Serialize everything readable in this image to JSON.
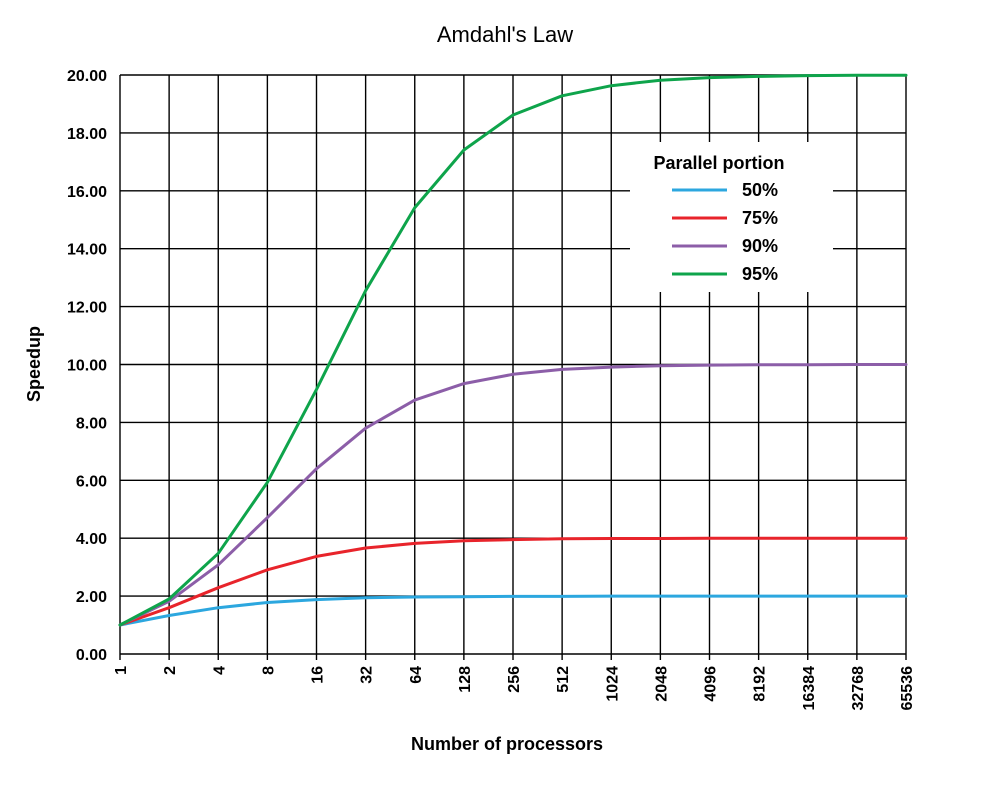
{
  "chart_data": {
    "type": "line",
    "title": "Amdahl's Law",
    "xlabel": "Number of processors",
    "ylabel": "Speedup",
    "x_scale": "log2",
    "x": [
      1,
      2,
      4,
      8,
      16,
      32,
      64,
      128,
      256,
      512,
      1024,
      2048,
      4096,
      8192,
      16384,
      32768,
      65536
    ],
    "x_tick_labels": [
      "1",
      "2",
      "4",
      "8",
      "16",
      "32",
      "64",
      "128",
      "256",
      "512",
      "1024",
      "2048",
      "4096",
      "8192",
      "16384",
      "32768",
      "65536"
    ],
    "ylim": [
      0,
      20
    ],
    "y_ticks": [
      0,
      2,
      4,
      6,
      8,
      10,
      12,
      14,
      16,
      18,
      20
    ],
    "y_tick_labels": [
      "0.00",
      "2.00",
      "4.00",
      "6.00",
      "8.00",
      "10.00",
      "12.00",
      "14.00",
      "16.00",
      "18.00",
      "20.00"
    ],
    "grid": true,
    "legend": {
      "title": "Parallel portion",
      "placement": "top-right"
    },
    "series": [
      {
        "name": "50%",
        "color": "#2ca7df",
        "values": [
          1.0,
          1.33,
          1.6,
          1.78,
          1.88,
          1.94,
          1.97,
          1.98,
          1.99,
          1.99,
          2.0,
          2.0,
          2.0,
          2.0,
          2.0,
          2.0,
          2.0
        ]
      },
      {
        "name": "75%",
        "color": "#e8242b",
        "values": [
          1.0,
          1.6,
          2.29,
          2.91,
          3.37,
          3.66,
          3.82,
          3.91,
          3.95,
          3.98,
          3.99,
          3.99,
          4.0,
          4.0,
          4.0,
          4.0,
          4.0
        ]
      },
      {
        "name": "90%",
        "color": "#8c5ea8",
        "values": [
          1.0,
          1.82,
          3.08,
          4.71,
          6.4,
          7.8,
          8.77,
          9.34,
          9.66,
          9.83,
          9.91,
          9.96,
          9.98,
          9.99,
          9.99,
          10.0,
          10.0
        ]
      },
      {
        "name": "95%",
        "color": "#0ea44b",
        "values": [
          1.0,
          1.9,
          3.48,
          5.93,
          9.14,
          12.55,
          15.42,
          17.41,
          18.62,
          19.28,
          19.63,
          19.82,
          19.91,
          19.95,
          19.98,
          19.99,
          19.99
        ]
      }
    ]
  }
}
